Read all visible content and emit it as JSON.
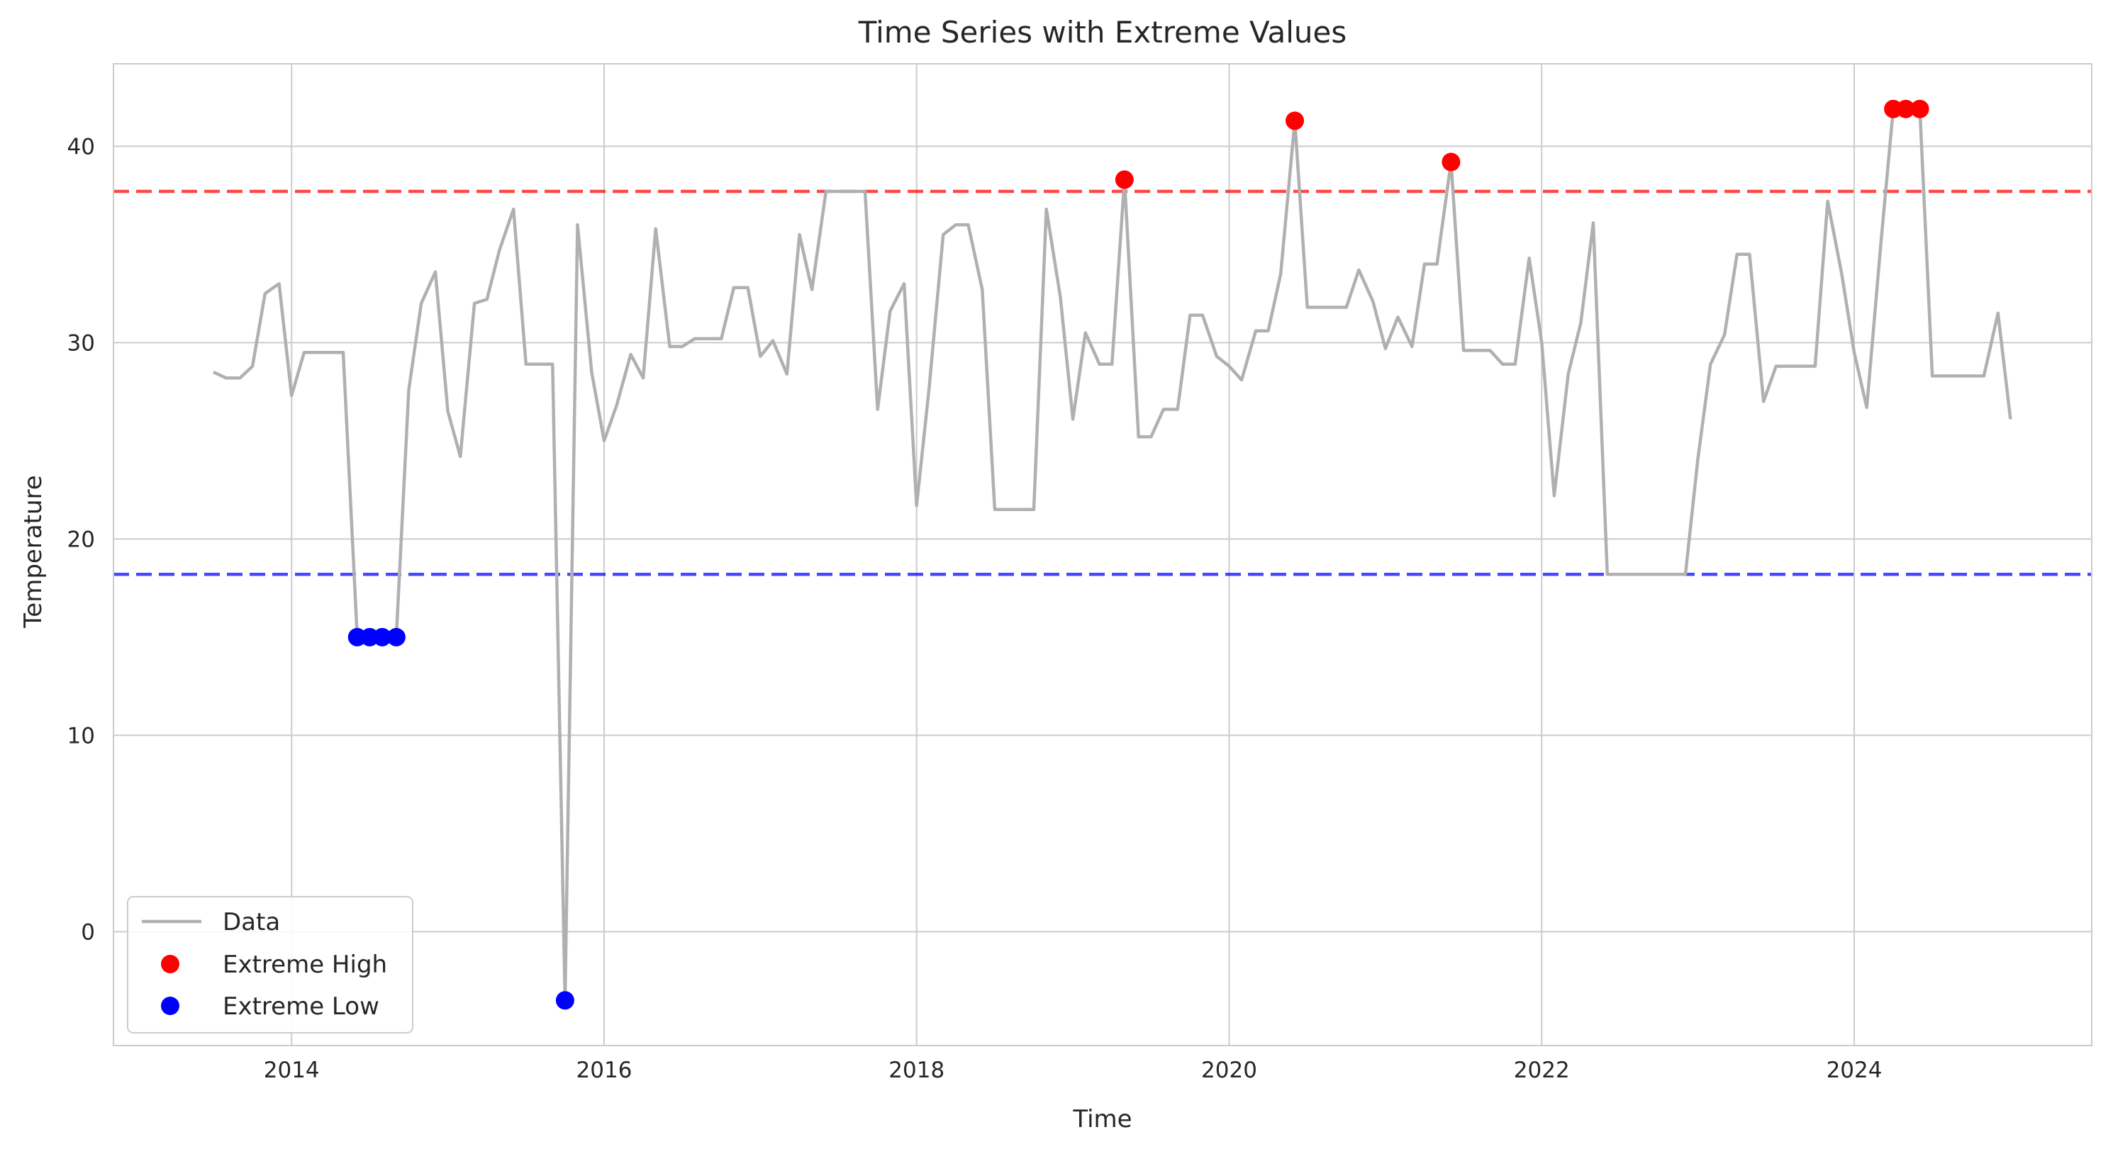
{
  "chart_data": {
    "type": "line",
    "title": "Time Series with Extreme Values",
    "xlabel": "Time",
    "ylabel": "Temperature",
    "xlim": [
      2012.86,
      2025.52
    ],
    "ylim": [
      -5.8,
      44.2
    ],
    "x_ticks": [
      2014,
      2016,
      2018,
      2020,
      2022,
      2024
    ],
    "y_ticks": [
      0,
      10,
      20,
      30,
      40
    ],
    "grid": true,
    "legend_position": "lower-left",
    "thresholds": [
      {
        "value": 37.7,
        "color": "#ff0000",
        "style": "dashed"
      },
      {
        "value": 18.2,
        "color": "#0000ff",
        "style": "dashed"
      }
    ],
    "series": [
      {
        "name": "Data",
        "kind": "line",
        "color": "#b0b0b0",
        "points": [
          [
            2013.5,
            28.5
          ],
          [
            2013.58,
            28.2
          ],
          [
            2013.67,
            28.2
          ],
          [
            2013.75,
            28.8
          ],
          [
            2013.83,
            32.5
          ],
          [
            2013.92,
            33.0
          ],
          [
            2014.0,
            27.3
          ],
          [
            2014.08,
            29.5
          ],
          [
            2014.17,
            29.5
          ],
          [
            2014.25,
            29.5
          ],
          [
            2014.33,
            29.5
          ],
          [
            2014.42,
            15.0
          ],
          [
            2014.5,
            15.0
          ],
          [
            2014.58,
            15.0
          ],
          [
            2014.67,
            15.0
          ],
          [
            2014.75,
            27.6
          ],
          [
            2014.83,
            32.0
          ],
          [
            2014.92,
            33.6
          ],
          [
            2015.0,
            26.5
          ],
          [
            2015.08,
            24.2
          ],
          [
            2015.17,
            32.0
          ],
          [
            2015.25,
            32.2
          ],
          [
            2015.33,
            34.7
          ],
          [
            2015.42,
            36.8
          ],
          [
            2015.5,
            28.9
          ],
          [
            2015.58,
            28.9
          ],
          [
            2015.67,
            28.9
          ],
          [
            2015.75,
            -3.5
          ],
          [
            2015.83,
            36.0
          ],
          [
            2015.92,
            28.5
          ],
          [
            2016.0,
            25.0
          ],
          [
            2016.08,
            26.8
          ],
          [
            2016.17,
            29.4
          ],
          [
            2016.25,
            28.2
          ],
          [
            2016.33,
            35.8
          ],
          [
            2016.42,
            29.8
          ],
          [
            2016.5,
            29.8
          ],
          [
            2016.58,
            30.2
          ],
          [
            2016.67,
            30.2
          ],
          [
            2016.75,
            30.2
          ],
          [
            2016.83,
            32.8
          ],
          [
            2016.92,
            32.8
          ],
          [
            2017.0,
            29.3
          ],
          [
            2017.08,
            30.1
          ],
          [
            2017.17,
            28.4
          ],
          [
            2017.25,
            35.5
          ],
          [
            2017.33,
            32.7
          ],
          [
            2017.42,
            37.7
          ],
          [
            2017.5,
            37.7
          ],
          [
            2017.58,
            37.7
          ],
          [
            2017.67,
            37.7
          ],
          [
            2017.75,
            26.6
          ],
          [
            2017.83,
            31.6
          ],
          [
            2017.92,
            33.0
          ],
          [
            2018.0,
            21.7
          ],
          [
            2018.08,
            27.7
          ],
          [
            2018.17,
            35.5
          ],
          [
            2018.25,
            36.0
          ],
          [
            2018.33,
            36.0
          ],
          [
            2018.42,
            32.7
          ],
          [
            2018.5,
            21.5
          ],
          [
            2018.58,
            21.5
          ],
          [
            2018.67,
            21.5
          ],
          [
            2018.75,
            21.5
          ],
          [
            2018.83,
            36.8
          ],
          [
            2018.92,
            32.3
          ],
          [
            2019.0,
            26.1
          ],
          [
            2019.08,
            30.5
          ],
          [
            2019.17,
            28.9
          ],
          [
            2019.25,
            28.9
          ],
          [
            2019.33,
            38.3
          ],
          [
            2019.42,
            25.2
          ],
          [
            2019.5,
            25.2
          ],
          [
            2019.58,
            26.6
          ],
          [
            2019.67,
            26.6
          ],
          [
            2019.75,
            31.4
          ],
          [
            2019.83,
            31.4
          ],
          [
            2019.92,
            29.3
          ],
          [
            2020.0,
            28.8
          ],
          [
            2020.08,
            28.1
          ],
          [
            2020.17,
            30.6
          ],
          [
            2020.25,
            30.6
          ],
          [
            2020.33,
            33.5
          ],
          [
            2020.42,
            41.3
          ],
          [
            2020.5,
            31.8
          ],
          [
            2020.58,
            31.8
          ],
          [
            2020.67,
            31.8
          ],
          [
            2020.75,
            31.8
          ],
          [
            2020.83,
            33.7
          ],
          [
            2020.92,
            32.1
          ],
          [
            2021.0,
            29.7
          ],
          [
            2021.08,
            31.3
          ],
          [
            2021.17,
            29.8
          ],
          [
            2021.25,
            34.0
          ],
          [
            2021.33,
            34.0
          ],
          [
            2021.42,
            39.2
          ],
          [
            2021.5,
            29.6
          ],
          [
            2021.58,
            29.6
          ],
          [
            2021.67,
            29.6
          ],
          [
            2021.75,
            28.9
          ],
          [
            2021.83,
            28.9
          ],
          [
            2021.92,
            34.3
          ],
          [
            2022.0,
            30.0
          ],
          [
            2022.08,
            22.2
          ],
          [
            2022.17,
            28.4
          ],
          [
            2022.25,
            31.0
          ],
          [
            2022.33,
            36.1
          ],
          [
            2022.42,
            18.2
          ],
          [
            2022.5,
            18.2
          ],
          [
            2022.58,
            18.2
          ],
          [
            2022.67,
            18.2
          ],
          [
            2022.75,
            18.2
          ],
          [
            2022.83,
            18.2
          ],
          [
            2022.92,
            18.2
          ],
          [
            2023.0,
            24.1
          ],
          [
            2023.08,
            28.9
          ],
          [
            2023.17,
            30.4
          ],
          [
            2023.25,
            34.5
          ],
          [
            2023.33,
            34.5
          ],
          [
            2023.42,
            27.0
          ],
          [
            2023.5,
            28.8
          ],
          [
            2023.58,
            28.8
          ],
          [
            2023.67,
            28.8
          ],
          [
            2023.75,
            28.8
          ],
          [
            2023.83,
            37.2
          ],
          [
            2023.92,
            33.5
          ],
          [
            2024.0,
            29.5
          ],
          [
            2024.08,
            26.7
          ],
          [
            2024.17,
            35.0
          ],
          [
            2024.25,
            41.9
          ],
          [
            2024.33,
            41.9
          ],
          [
            2024.42,
            41.9
          ],
          [
            2024.5,
            28.3
          ],
          [
            2024.58,
            28.3
          ],
          [
            2024.67,
            28.3
          ],
          [
            2024.75,
            28.3
          ],
          [
            2024.83,
            28.3
          ],
          [
            2024.92,
            31.5
          ],
          [
            2025.0,
            26.1
          ]
        ]
      },
      {
        "name": "Extreme High",
        "kind": "scatter",
        "color": "#ff0000",
        "points": [
          [
            2019.33,
            38.3
          ],
          [
            2020.42,
            41.3
          ],
          [
            2021.42,
            39.2
          ],
          [
            2024.25,
            41.9
          ],
          [
            2024.33,
            41.9
          ],
          [
            2024.42,
            41.9
          ]
        ]
      },
      {
        "name": "Extreme Low",
        "kind": "scatter",
        "color": "#0000ff",
        "points": [
          [
            2014.42,
            15.0
          ],
          [
            2014.5,
            15.0
          ],
          [
            2014.58,
            15.0
          ],
          [
            2014.67,
            15.0
          ],
          [
            2015.75,
            -3.5
          ]
        ]
      }
    ]
  }
}
